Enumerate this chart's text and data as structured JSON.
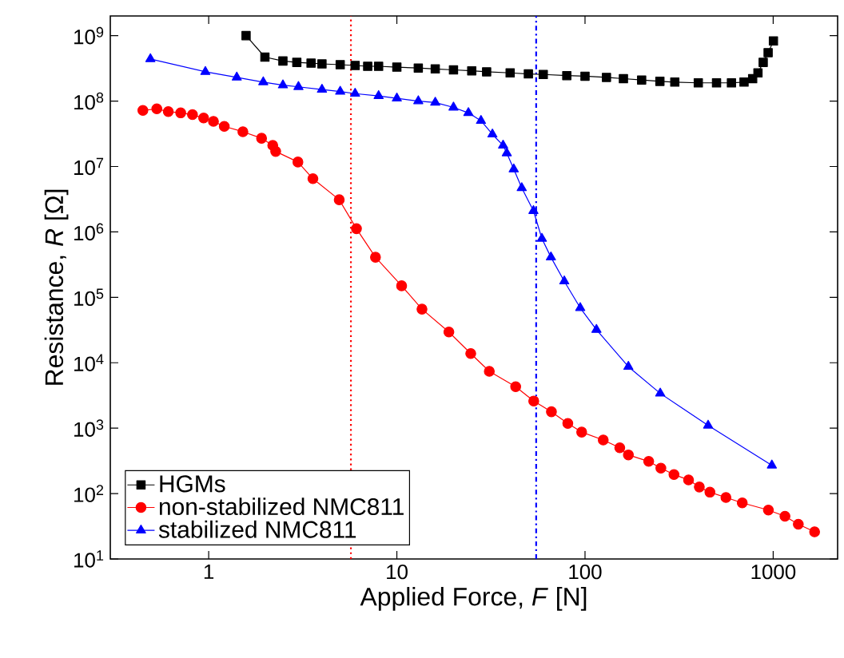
{
  "chart_data": {
    "type": "line",
    "xlabel": "Applied Force, *F* [N]",
    "ylabel": "Resistance, *R* [Ω]",
    "log": "xy",
    "xlim": [
      0.3,
      2200
    ],
    "ylim": [
      10,
      2000000000
    ],
    "xticks": [
      1,
      10,
      100,
      1000
    ],
    "yticks": [
      {
        "value": 10,
        "label": "10$^{1}$"
      },
      {
        "value": 100,
        "label": "10$^{2}$"
      },
      {
        "value": 1000,
        "label": "10$^{3}$"
      },
      {
        "value": 10000,
        "label": "10$^{4}$"
      },
      {
        "value": 100000,
        "label": "10$^{5}$"
      },
      {
        "value": 1000000,
        "label": "10$^{6}$"
      },
      {
        "value": 10000000,
        "label": "10$^{7}$"
      },
      {
        "value": 100000000,
        "label": "10$^{8}$"
      },
      {
        "value": 1000000000,
        "label": "10$^{9}$"
      }
    ],
    "legend": "bottom left",
    "series": [
      {
        "name": "HGMs",
        "color": "#000000",
        "marker": "square",
        "x": [
          1.58,
          1.99,
          2.48,
          2.94,
          3.5,
          4,
          5,
          6,
          7,
          8,
          10,
          13,
          16,
          20,
          25,
          30,
          40,
          50,
          60,
          80,
          100,
          130,
          160,
          200,
          250,
          300,
          400,
          500,
          600,
          700,
          778,
          830,
          885,
          940,
          1003
        ],
        "values": [
          1000000000.0,
          470000000.0,
          410000000.0,
          390000000.0,
          380000000.0,
          370000000.0,
          360000000.0,
          350000000.0,
          340000000.0,
          340000000.0,
          330000000.0,
          320000000.0,
          310000000.0,
          300000000.0,
          290000000.0,
          280000000.0,
          270000000.0,
          260000000.0,
          255000000.0,
          245000000.0,
          240000000.0,
          230000000.0,
          220000000.0,
          210000000.0,
          200000000.0,
          195000000.0,
          190000000.0,
          190000000.0,
          190000000.0,
          195000000.0,
          220000000.0,
          270000000.0,
          390000000.0,
          550000000.0,
          830000000.0
        ]
      },
      {
        "name": "non-stabilized NMC811",
        "color": "#ff0000",
        "marker": "circle",
        "x": [
          0.447,
          0.53,
          0.61,
          0.71,
          0.82,
          0.94,
          1.06,
          1.21,
          1.52,
          1.91,
          2.19,
          2.27,
          2.98,
          3.58,
          4.94,
          6.1,
          7.7,
          10.6,
          13.6,
          18.9,
          24.7,
          31,
          42.8,
          53.4,
          66.3,
          81,
          96,
          125,
          153,
          170,
          218,
          253,
          297,
          355,
          405,
          461,
          561,
          685,
          943,
          1155,
          1360,
          1660
        ],
        "values": [
          72000000.0,
          76000000.0,
          69000000.0,
          66000000.0,
          62000000.0,
          55000000.0,
          49000000.0,
          41000000.0,
          34000000.0,
          27000000.0,
          21000000.0,
          17000000.0,
          11700000.0,
          6500000.0,
          3100000.0,
          1120000.0,
          410000.0,
          150000.0,
          66000.0,
          29500.0,
          13800.0,
          7400,
          4300,
          2600,
          1780,
          1180,
          870,
          660,
          500,
          390,
          310,
          245,
          195,
          162,
          126,
          105,
          87,
          72,
          56,
          45,
          34,
          26
        ]
      },
      {
        "name": "stabilized NMC811",
        "color": "#0000ff",
        "marker": "triangle",
        "x": [
          0.49,
          0.96,
          1.41,
          1.95,
          2.48,
          3,
          4,
          5,
          6,
          8,
          10,
          13,
          16,
          20,
          24,
          28,
          32.2,
          36.7,
          38.4,
          41.8,
          46.1,
          53.2,
          59,
          65.9,
          77.6,
          94.3,
          115,
          170,
          251,
          451,
          984
        ],
        "values": [
          440000000.0,
          280000000.0,
          230000000.0,
          195000000.0,
          175000000.0,
          165000000.0,
          150000000.0,
          140000000.0,
          130000000.0,
          120000000.0,
          110000000.0,
          100000000.0,
          95000000.0,
          80000000.0,
          66000000.0,
          50000000.0,
          31000000.0,
          21000000.0,
          16000000.0,
          9100000.0,
          4700000.0,
          2100000.0,
          790000.0,
          410000.0,
          176000.0,
          69000.0,
          32000.0,
          8700,
          3400,
          1100,
          270
        ]
      }
    ],
    "ref_lines": [
      {
        "axis": "x",
        "value": 5.7,
        "color": "#ff0000",
        "line_style": "dotted"
      },
      {
        "axis": "x",
        "value": 55,
        "color": "#0000ff",
        "line_style": "dashdot"
      }
    ]
  }
}
